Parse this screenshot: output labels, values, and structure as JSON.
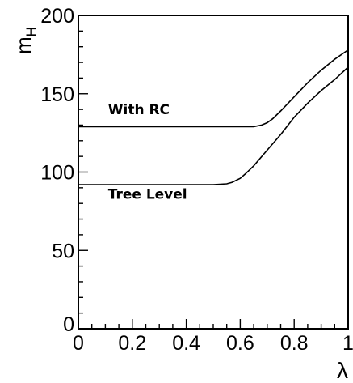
{
  "chart_data": {
    "type": "line",
    "title": "",
    "xlabel": "λ",
    "ylabel_main": "m",
    "ylabel_sub": "H",
    "xlim": [
      0,
      1
    ],
    "ylim": [
      0,
      200
    ],
    "x_major_ticks": [
      0,
      0.2,
      0.4,
      0.6,
      0.8,
      1
    ],
    "x_tick_labels": [
      "0",
      "0.2",
      "0.4",
      "0.6",
      "0.8",
      "1"
    ],
    "y_major_ticks": [
      0,
      50,
      100,
      150,
      200
    ],
    "y_tick_labels": [
      "0",
      "50",
      "100",
      "150",
      "200"
    ],
    "grid": false,
    "legend": "none",
    "series": [
      {
        "name": "With RC",
        "x": [
          0,
          0.1,
          0.2,
          0.3,
          0.4,
          0.5,
          0.6,
          0.65,
          0.68,
          0.7,
          0.72,
          0.75,
          0.8,
          0.85,
          0.9,
          0.95,
          1.0
        ],
        "y": [
          129,
          129,
          129,
          129,
          129,
          129,
          129,
          129,
          130,
          131.5,
          134,
          139,
          148,
          157,
          165,
          172,
          178
        ]
      },
      {
        "name": "Tree Level",
        "x": [
          0,
          0.1,
          0.2,
          0.3,
          0.4,
          0.5,
          0.55,
          0.57,
          0.6,
          0.62,
          0.65,
          0.7,
          0.75,
          0.8,
          0.85,
          0.9,
          0.95,
          1.0
        ],
        "y": [
          92,
          92,
          92,
          92,
          92,
          92,
          92.5,
          93.5,
          96,
          99,
          104,
          114,
          124,
          135,
          144,
          152,
          159,
          167
        ]
      }
    ],
    "annotations": [
      {
        "text": "With RC",
        "x": 0.11,
        "y": 137
      },
      {
        "text": "Tree Level",
        "x": 0.11,
        "y": 83
      }
    ]
  }
}
